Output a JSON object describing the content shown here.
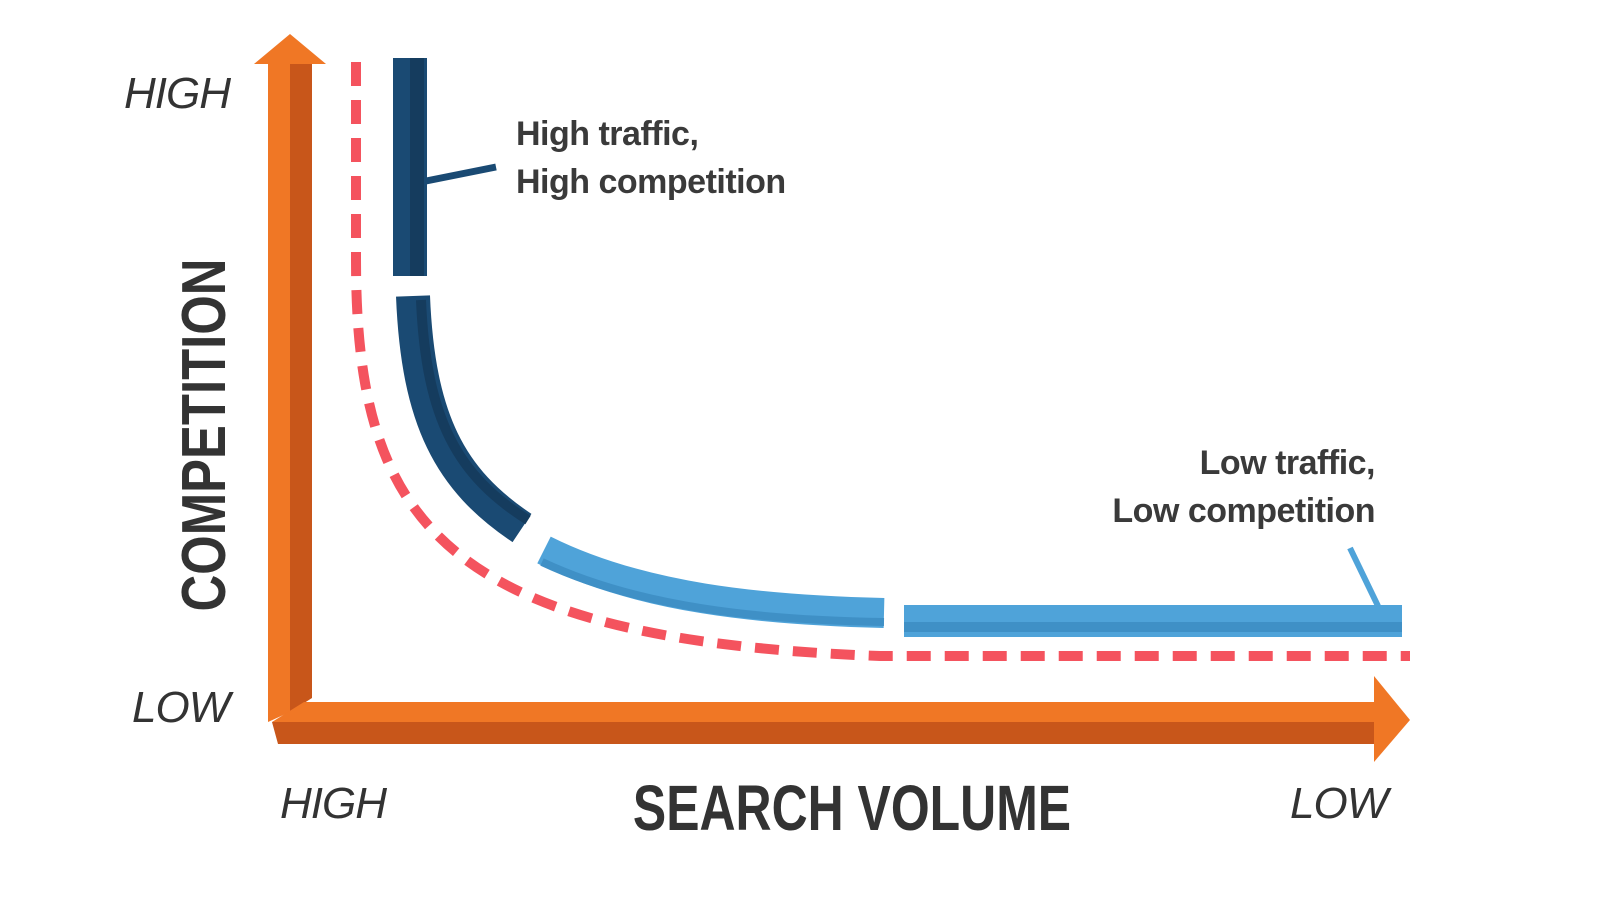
{
  "colors": {
    "axis": "#f07725",
    "axis_shade": "#c8561a",
    "high_segment": "#1a4a73",
    "low_segment": "#4fa3d9",
    "dashed_curve": "#f4535e",
    "text": "#333333"
  },
  "y_axis": {
    "title": "COMPETITION",
    "high_label": "HIGH",
    "low_label": "LOW"
  },
  "x_axis": {
    "title": "SEARCH VOLUME",
    "high_label": "HIGH",
    "low_label": "LOW"
  },
  "annotations": {
    "high": {
      "line1": "High traffic,",
      "line2": "High competition"
    },
    "low": {
      "line1": "Low traffic,",
      "line2": "Low competition"
    }
  }
}
